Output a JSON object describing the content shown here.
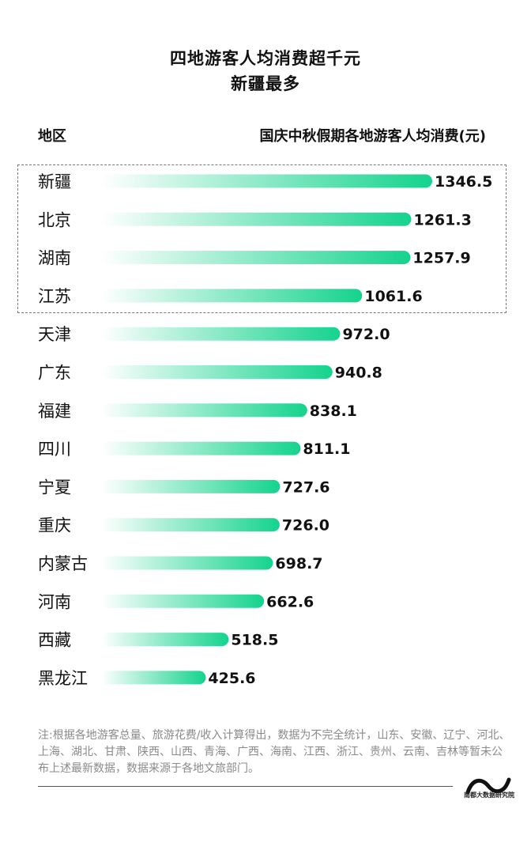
{
  "title_line1": "四地游客人均消费超千元",
  "title_line2": "新疆最多",
  "region_header": "地区",
  "value_header": "国庆中秋假期各地游客人均消费(元)",
  "note": "注:根据各地游客总量、旅游花费/收入计算得出，数据为不完全统计，山东、安徽、辽宁、河北、上海、湖北、甘肃、陕西、山西、青海、广西、海南、江西、浙江、贵州、云南、吉林等暂未公布上述最新数据，数据来源于各地文旅部门。",
  "logo_text": "南都大数据研究院",
  "colors": {
    "bar_start": "#ffffff",
    "bar_end": "#14d38d",
    "text": "#111111"
  },
  "chart_data": {
    "type": "bar",
    "orientation": "horizontal",
    "categories": [
      "新疆",
      "北京",
      "湖南",
      "江苏",
      "天津",
      "广东",
      "福建",
      "四川",
      "宁夏",
      "重庆",
      "内蒙古",
      "河南",
      "西藏",
      "黑龙江"
    ],
    "values": [
      1346.5,
      1261.3,
      1257.9,
      1061.6,
      972.0,
      940.8,
      838.1,
      811.1,
      727.6,
      726.0,
      698.7,
      662.6,
      518.5,
      425.6
    ],
    "value_labels": [
      "1346.5",
      "1261.3",
      "1257.9",
      "1061.6",
      "972.0",
      "940.8",
      "838.1",
      "811.1",
      "727.6",
      "726.0",
      "698.7",
      "662.6",
      "518.5",
      "425.6"
    ],
    "highlighted_categories": [
      "新疆",
      "北京",
      "湖南",
      "江苏"
    ],
    "grid": false,
    "legend": "none"
  }
}
